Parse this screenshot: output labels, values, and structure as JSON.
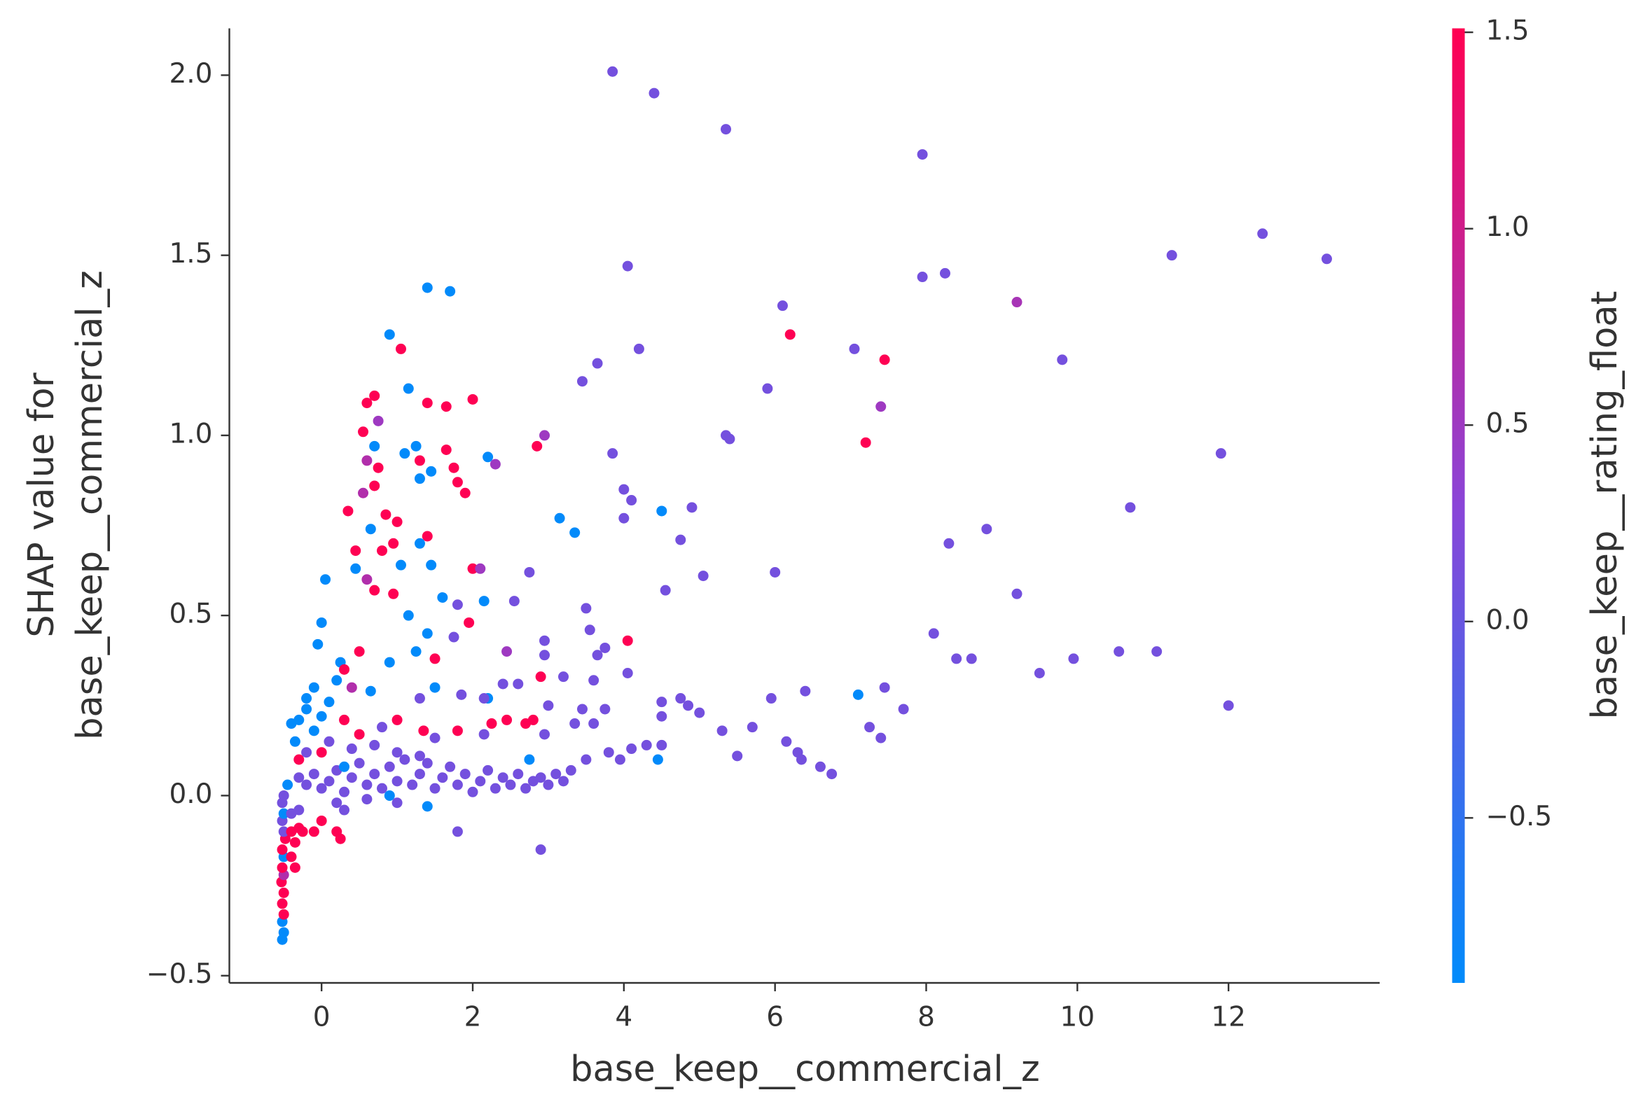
{
  "chart_data": {
    "type": "scatter",
    "xlabel": "base_keep__commercial_z",
    "ylabel": [
      "SHAP value for",
      "base_keep__commercial_z"
    ],
    "colorbar_label": "base_keep__rating_float",
    "colormap": [
      "#008bfb",
      "#8a45d8",
      "#ff0052"
    ],
    "xlim": [
      -1.22,
      14.0
    ],
    "ylim": [
      -0.52,
      2.13
    ],
    "clim": [
      -0.92,
      1.51
    ],
    "xticks": [
      0,
      2,
      4,
      6,
      8,
      10,
      12
    ],
    "yticks": [
      {
        "value": -0.5,
        "label": "−0.5"
      },
      {
        "value": 0,
        "label": "0.0"
      },
      0.5,
      {
        "value": 1,
        "label": "1.0"
      },
      1.5,
      {
        "value": 2,
        "label": "2.0"
      }
    ],
    "cticks": [
      {
        "value": -0.5,
        "label": "−0.5"
      },
      {
        "value": 0,
        "label": "0.0"
      },
      0.5,
      {
        "value": 1,
        "label": "1.0"
      },
      1.5
    ],
    "x": [
      3.85,
      4.4,
      5.35,
      7.95,
      12.45,
      13.3,
      11.25,
      8.25,
      7.95,
      4.05,
      9.2,
      6.1,
      6.2,
      7.05,
      7.45,
      9.8,
      4.2,
      3.65,
      3.45,
      5.9,
      7.4,
      5.35,
      5.4,
      7.2,
      11.9,
      3.85,
      4.0,
      4.1,
      4.5,
      4.9,
      4.0,
      10.7,
      4.75,
      8.8,
      8.3,
      5.05,
      6.0,
      4.55,
      9.2,
      8.1,
      4.05,
      8.4,
      8.6,
      9.5,
      9.95,
      10.55,
      11.05,
      12.0,
      7.1,
      7.45,
      7.7,
      7.25,
      7.4,
      6.4,
      5.95,
      6.6,
      6.75,
      6.3,
      6.35,
      6.15,
      5.7,
      5.3,
      5.5,
      5.0,
      4.75,
      4.85,
      4.5,
      4.5,
      4.45,
      4.5,
      4.3,
      4.1,
      1.4,
      1.7,
      0.9,
      1.05,
      1.15,
      0.7,
      0.6,
      1.4,
      1.65,
      2.0,
      0.75,
      0.55,
      2.95,
      2.85,
      1.65,
      1.25,
      1.1,
      0.7,
      2.2,
      2.3,
      1.3,
      0.6,
      0.75,
      1.75,
      1.45,
      1.3,
      0.7,
      0.55,
      1.8,
      1.9,
      0.35,
      0.85,
      3.15,
      0.65,
      1.0,
      1.4,
      0.95,
      1.3,
      3.35,
      0.45,
      0.8,
      1.05,
      1.45,
      2.0,
      2.1,
      2.75,
      0.6,
      0.05,
      0.45,
      0.7,
      0.95,
      2.15,
      2.55,
      1.6,
      1.15,
      1.8,
      1.95,
      1.4,
      1.75,
      3.5,
      3.55,
      3.75,
      2.45,
      2.95,
      2.95,
      0.0,
      -0.05,
      0.5,
      1.25,
      1.5,
      0.9,
      0.25,
      3.2,
      3.6,
      3.65,
      4.05,
      2.6,
      2.4,
      2.9,
      2.2,
      2.15,
      1.85,
      3.45,
      3.0,
      2.45,
      2.8,
      2.7,
      2.25,
      2.15,
      2.95,
      3.35,
      3.6,
      3.75,
      1.8,
      1.5,
      1.35,
      1.0,
      0.8,
      0.3,
      0.0,
      -0.3,
      -0.2,
      0.4,
      0.65,
      1.3,
      1.5,
      0.3,
      2.75,
      3.5,
      3.8,
      3.95,
      -0.52,
      -0.5,
      -0.52,
      -0.5,
      -0.52,
      -0.5,
      -0.53,
      -0.5,
      -0.52,
      -0.5,
      -0.52,
      -0.48,
      -0.5,
      -0.52,
      -0.5,
      -0.52,
      -0.5,
      -0.45,
      -0.4,
      -0.35,
      -0.3,
      -0.25,
      -0.4,
      -0.3,
      -0.4,
      -0.35,
      0.2,
      0.25,
      0.0,
      -0.1,
      2.9,
      1.8,
      1.4,
      0.3,
      -0.3,
      -0.2,
      -0.1,
      0.0,
      0.1,
      0.2,
      0.3,
      0.4,
      0.5,
      0.6,
      0.7,
      0.8,
      0.9,
      1.0,
      1.1,
      1.2,
      1.3,
      1.4,
      1.5,
      1.6,
      1.7,
      1.8,
      1.9,
      2.0,
      2.1,
      2.2,
      2.3,
      2.4,
      2.5,
      2.6,
      2.7,
      2.8,
      2.9,
      3.0,
      3.1,
      3.2,
      3.3,
      -0.2,
      0.1,
      0.4,
      0.7,
      1.0,
      1.3,
      0.2,
      0.6,
      1.0,
      0.9,
      -0.3,
      0.0,
      0.3,
      -0.1,
      0.5,
      -0.35,
      -0.4,
      -0.2,
      0.1,
      -0.1,
      0.2
    ],
    "values": [
      2.01,
      1.95,
      1.85,
      1.78,
      1.56,
      1.49,
      1.5,
      1.45,
      1.44,
      1.47,
      1.37,
      1.36,
      1.28,
      1.24,
      1.21,
      1.21,
      1.24,
      1.2,
      1.15,
      1.13,
      1.08,
      1.0,
      0.99,
      0.98,
      0.95,
      0.95,
      0.85,
      0.82,
      0.79,
      0.8,
      0.77,
      0.8,
      0.71,
      0.74,
      0.7,
      0.61,
      0.62,
      0.57,
      0.56,
      0.45,
      0.43,
      0.38,
      0.38,
      0.34,
      0.38,
      0.4,
      0.4,
      0.25,
      0.28,
      0.3,
      0.24,
      0.19,
      0.16,
      0.29,
      0.27,
      0.08,
      0.06,
      0.12,
      0.1,
      0.15,
      0.19,
      0.18,
      0.11,
      0.23,
      0.27,
      0.25,
      0.26,
      0.22,
      0.1,
      0.14,
      0.14,
      0.13,
      1.41,
      1.4,
      1.28,
      1.24,
      1.13,
      1.11,
      1.09,
      1.09,
      1.08,
      1.1,
      1.04,
      1.01,
      1.0,
      0.97,
      0.96,
      0.97,
      0.95,
      0.97,
      0.94,
      0.92,
      0.93,
      0.93,
      0.91,
      0.91,
      0.9,
      0.88,
      0.86,
      0.84,
      0.87,
      0.84,
      0.79,
      0.78,
      0.77,
      0.74,
      0.76,
      0.72,
      0.7,
      0.7,
      0.73,
      0.68,
      0.68,
      0.64,
      0.64,
      0.63,
      0.63,
      0.62,
      0.6,
      0.6,
      0.63,
      0.57,
      0.56,
      0.54,
      0.54,
      0.55,
      0.5,
      0.53,
      0.48,
      0.45,
      0.44,
      0.52,
      0.46,
      0.41,
      0.4,
      0.43,
      0.39,
      0.48,
      0.42,
      0.4,
      0.4,
      0.38,
      0.37,
      0.37,
      0.33,
      0.32,
      0.39,
      0.34,
      0.31,
      0.31,
      0.33,
      0.27,
      0.27,
      0.28,
      0.24,
      0.25,
      0.21,
      0.21,
      0.2,
      0.2,
      0.17,
      0.17,
      0.2,
      0.2,
      0.24,
      0.18,
      0.16,
      0.18,
      0.21,
      0.19,
      0.21,
      0.22,
      0.21,
      0.27,
      0.3,
      0.29,
      0.27,
      0.3,
      0.35,
      0.1,
      0.1,
      0.12,
      0.1,
      -0.4,
      -0.38,
      -0.35,
      -0.33,
      -0.3,
      -0.27,
      -0.24,
      -0.22,
      -0.2,
      -0.17,
      -0.15,
      -0.12,
      -0.1,
      -0.07,
      -0.05,
      -0.02,
      0.0,
      0.03,
      -0.1,
      -0.13,
      -0.09,
      -0.1,
      -0.05,
      -0.04,
      -0.17,
      -0.2,
      -0.1,
      -0.12,
      -0.07,
      -0.1,
      -0.15,
      -0.1,
      -0.03,
      -0.04,
      0.05,
      0.03,
      0.06,
      0.02,
      0.04,
      0.07,
      0.01,
      0.05,
      0.09,
      0.03,
      0.06,
      0.02,
      0.08,
      0.04,
      0.1,
      0.03,
      0.06,
      0.09,
      0.02,
      0.05,
      0.08,
      0.03,
      0.06,
      0.01,
      0.04,
      0.07,
      0.02,
      0.05,
      0.03,
      0.06,
      0.02,
      0.04,
      0.05,
      0.03,
      0.06,
      0.04,
      0.07,
      0.12,
      0.15,
      0.13,
      0.14,
      0.12,
      0.11,
      -0.02,
      -0.01,
      -0.02,
      0.0,
      0.1,
      0.12,
      0.08,
      0.18,
      0.17,
      0.15,
      0.2,
      0.24,
      0.26,
      0.3,
      0.32
    ],
    "color_values": [
      0.1,
      0.1,
      0.1,
      0.1,
      0.1,
      0.1,
      0.1,
      0.1,
      0.1,
      0.1,
      0.6,
      0.1,
      1.5,
      0.1,
      1.5,
      0.1,
      0.1,
      0.1,
      0.1,
      0.1,
      0.5,
      0.1,
      0.1,
      1.5,
      0.1,
      0.1,
      0.1,
      0.1,
      -0.9,
      0.1,
      0.1,
      0.1,
      0.1,
      0.1,
      0.1,
      0.1,
      0.1,
      0.1,
      0.1,
      0.1,
      1.5,
      0.1,
      0.1,
      0.1,
      0.1,
      0.1,
      0.1,
      0.1,
      -0.9,
      0.1,
      0.1,
      0.1,
      0.1,
      0.1,
      0.1,
      0.1,
      0.1,
      0.1,
      0.1,
      0.1,
      0.1,
      0.1,
      0.1,
      0.1,
      0.1,
      0.1,
      0.1,
      0.1,
      -0.9,
      0.1,
      0.1,
      0.1,
      -0.9,
      -0.9,
      -0.9,
      1.5,
      -0.9,
      1.5,
      1.5,
      1.5,
      1.5,
      1.5,
      0.5,
      1.5,
      0.5,
      1.5,
      1.5,
      -0.9,
      -0.9,
      -0.9,
      -0.9,
      0.5,
      1.5,
      0.7,
      1.5,
      1.5,
      -0.9,
      -0.9,
      1.5,
      0.7,
      1.5,
      1.5,
      1.5,
      1.5,
      -0.9,
      -0.9,
      1.5,
      1.5,
      1.5,
      -0.9,
      -0.9,
      1.5,
      1.5,
      -0.9,
      -0.9,
      1.5,
      0.5,
      0.1,
      0.7,
      -0.9,
      -0.9,
      1.5,
      1.5,
      -0.9,
      0.1,
      -0.9,
      -0.9,
      0.1,
      1.5,
      -0.9,
      0.1,
      0.1,
      0.1,
      0.1,
      0.5,
      0.1,
      0.1,
      -0.9,
      -0.9,
      1.5,
      -0.9,
      1.5,
      -0.9,
      -0.9,
      0.1,
      0.1,
      0.1,
      0.1,
      0.1,
      0.1,
      1.5,
      -0.9,
      0.1,
      0.1,
      0.1,
      0.1,
      1.5,
      1.5,
      1.5,
      1.5,
      0.1,
      0.1,
      0.1,
      0.1,
      0.1,
      1.5,
      0.1,
      1.5,
      1.5,
      0.1,
      1.5,
      -0.9,
      -0.9,
      -0.9,
      0.7,
      -0.9,
      0.1,
      -0.9,
      1.5,
      -0.9,
      0.1,
      0.1,
      0.1,
      -0.9,
      -0.9,
      -0.9,
      1.5,
      1.5,
      1.5,
      1.5,
      0.7,
      1.5,
      -0.9,
      1.5,
      1.5,
      0.1,
      0.1,
      -0.9,
      0.1,
      0.1,
      -0.9,
      1.5,
      1.5,
      1.5,
      1.5,
      0.1,
      0.1,
      1.5,
      1.5,
      1.5,
      1.5,
      1.5,
      1.5,
      0.1,
      0.1,
      -0.9,
      0.1,
      0.1,
      0.1,
      0.1,
      0.1,
      0.1,
      0.1,
      0.1,
      0.1,
      0.1,
      0.1,
      0.1,
      0.1,
      0.1,
      0.1,
      0.1,
      0.1,
      0.1,
      0.1,
      0.1,
      0.1,
      0.1,
      0.1,
      0.1,
      0.1,
      0.1,
      0.1,
      0.1,
      0.1,
      0.1,
      0.1,
      0.1,
      0.1,
      0.1,
      0.1,
      0.1,
      0.1,
      0.1,
      0.1,
      0.1,
      0.1,
      0.1,
      0.1,
      0.1,
      0.1,
      0.1,
      0.1,
      -0.9,
      1.5,
      1.5,
      -0.9,
      -0.9,
      1.5,
      -0.9,
      -0.9,
      -0.9,
      -0.9,
      -0.9,
      -0.9
    ]
  }
}
